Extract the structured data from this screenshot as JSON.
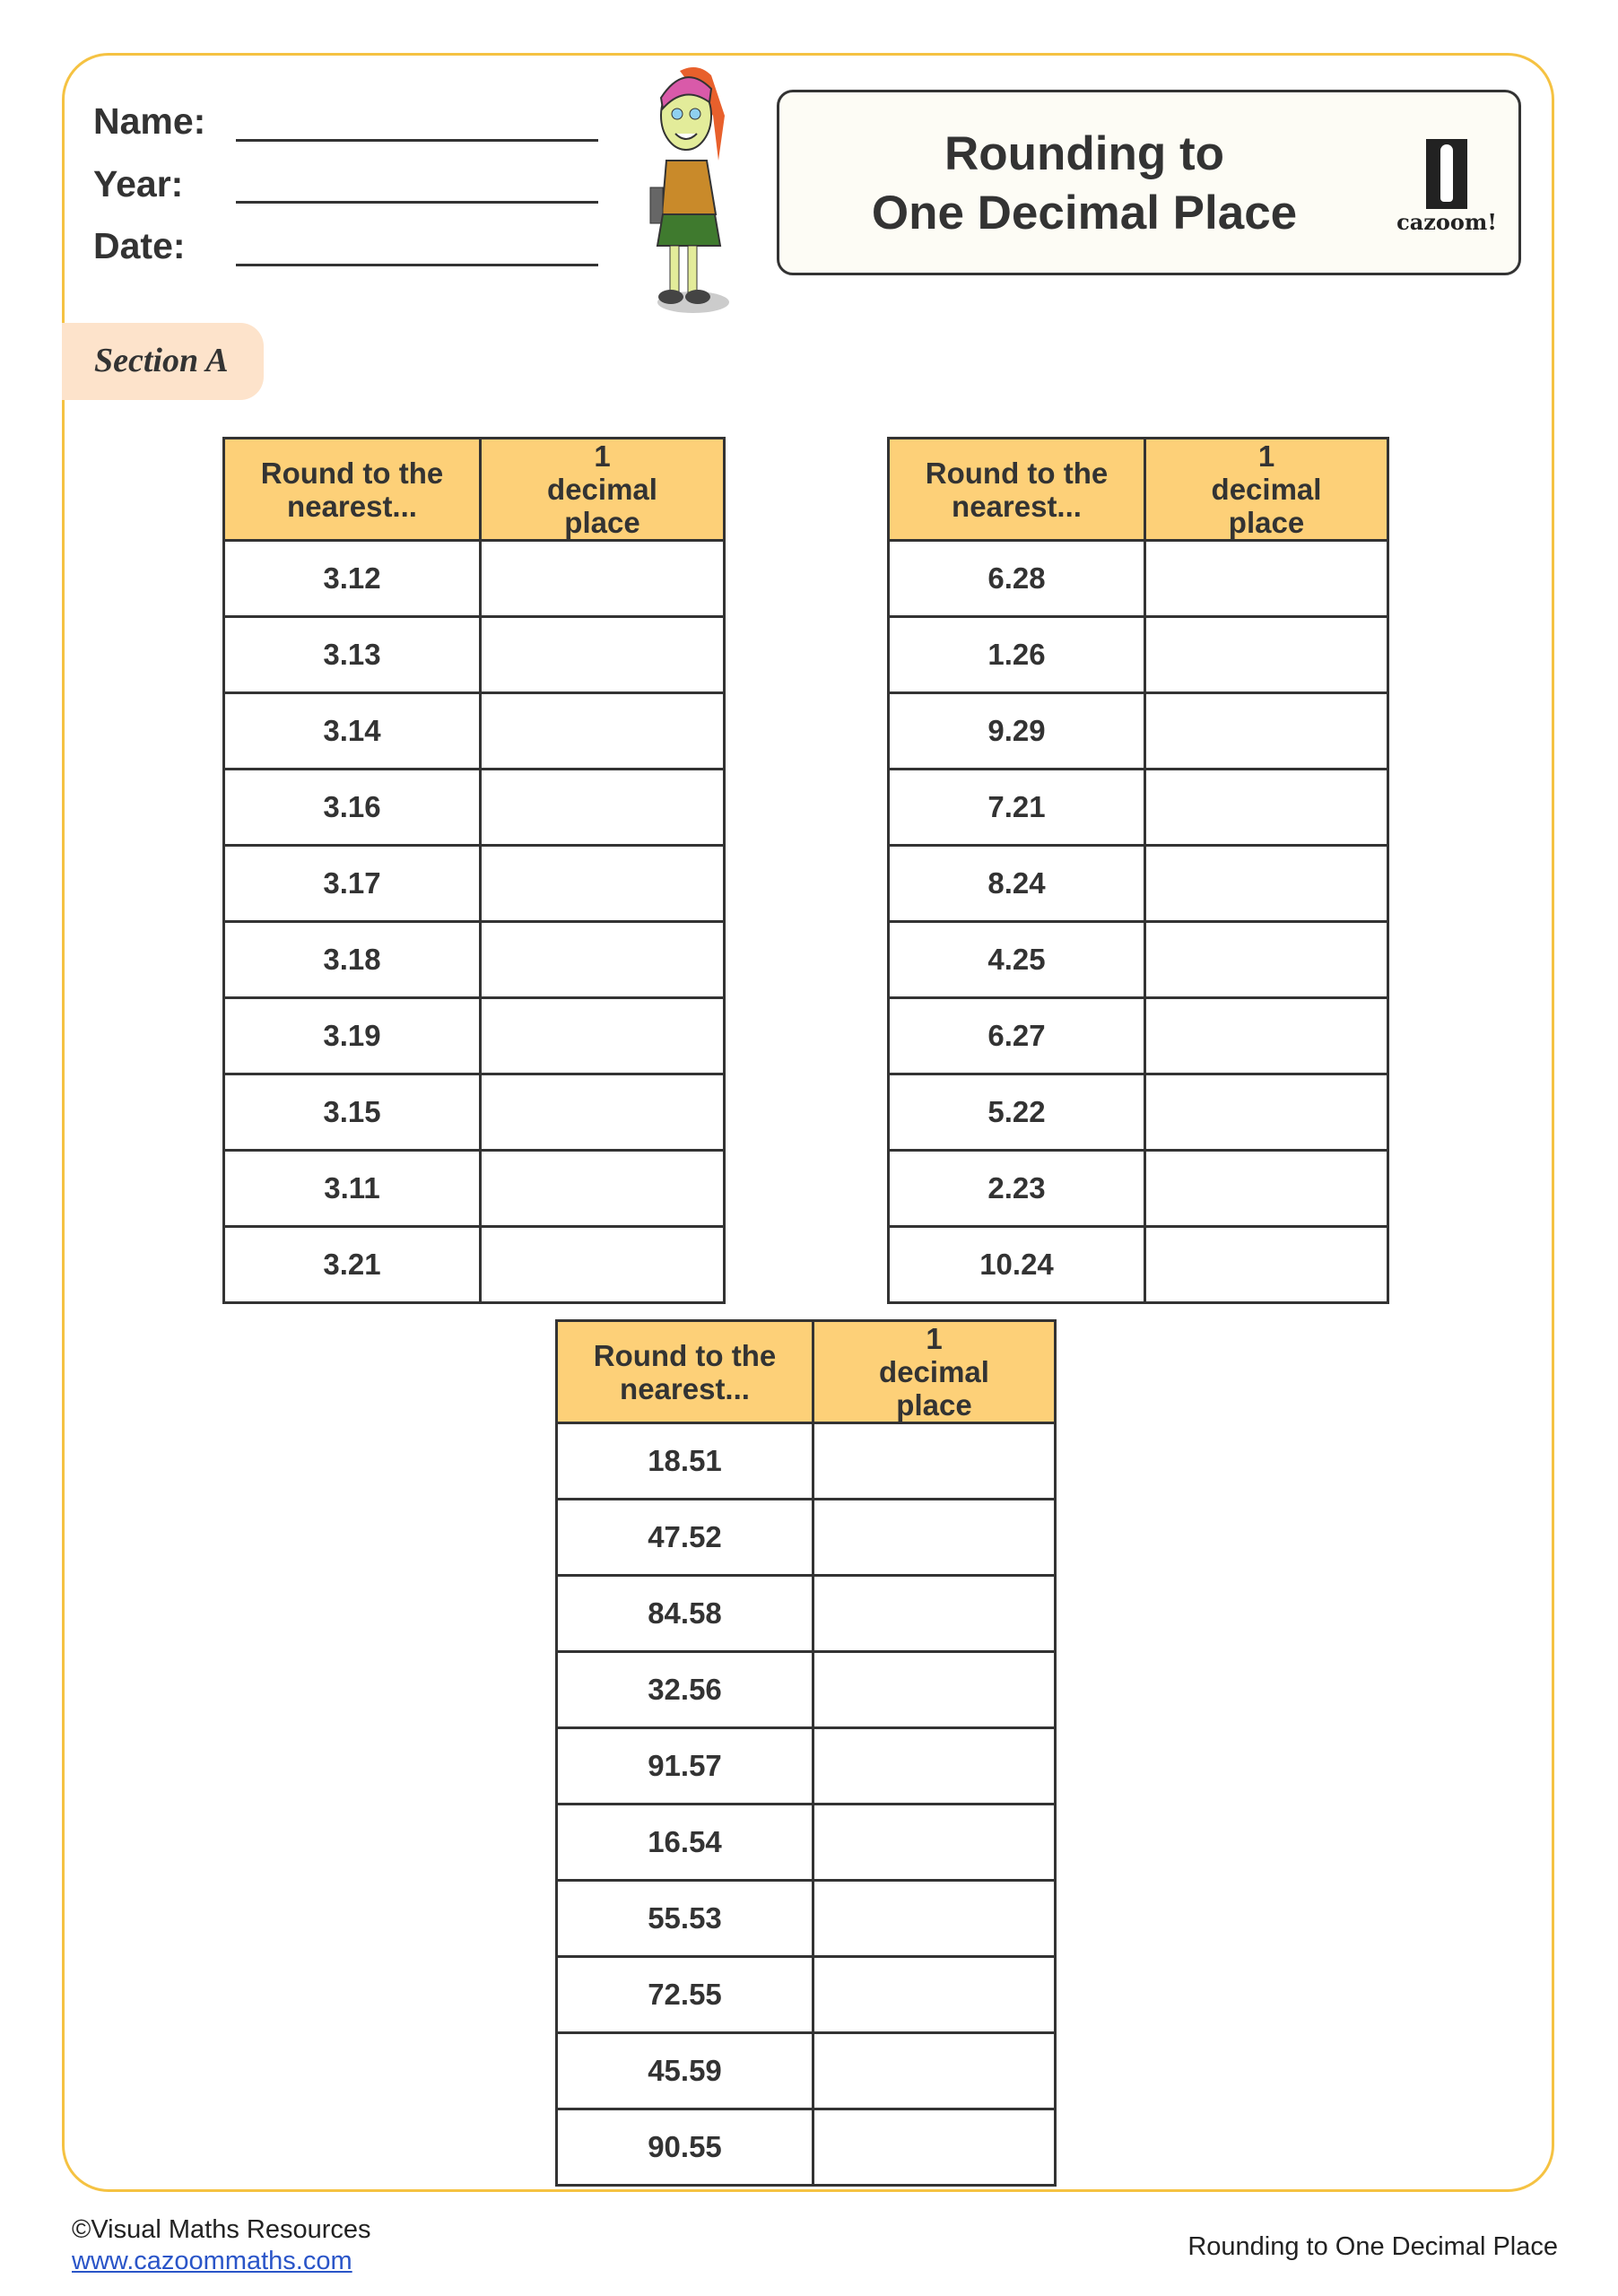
{
  "header": {
    "fields": [
      {
        "label": "Name:"
      },
      {
        "label": "Year:"
      },
      {
        "label": "Date:"
      }
    ],
    "title_line1": "Rounding to",
    "title_line2": "One Decimal Place",
    "logo_text": "cazoom!"
  },
  "section": {
    "label": "Section A"
  },
  "tables": [
    {
      "headers": [
        "Round to the nearest...",
        "1 decimal place"
      ],
      "rows": [
        "3.12",
        "3.13",
        "3.14",
        "3.16",
        "3.17",
        "3.18",
        "3.19",
        "3.15",
        "3.11",
        "3.21"
      ]
    },
    {
      "headers": [
        "Round to the nearest...",
        "1 decimal place"
      ],
      "rows": [
        "6.28",
        "1.26",
        "9.29",
        "7.21",
        "8.24",
        "4.25",
        "6.27",
        "5.22",
        "2.23",
        "10.24"
      ]
    },
    {
      "headers": [
        "Round to the nearest...",
        "1 decimal place"
      ],
      "rows": [
        "18.51",
        "47.52",
        "84.58",
        "32.56",
        "91.57",
        "16.54",
        "55.53",
        "72.55",
        "45.59",
        "90.55"
      ]
    }
  ],
  "footer": {
    "copyright": "©Visual Maths Resources",
    "link": "www.cazoommaths.com",
    "right": "Rounding to One Decimal Place"
  },
  "colors": {
    "frame": "#f5c242",
    "header_fill": "#fdd078",
    "section_fill": "#fde3cb"
  }
}
